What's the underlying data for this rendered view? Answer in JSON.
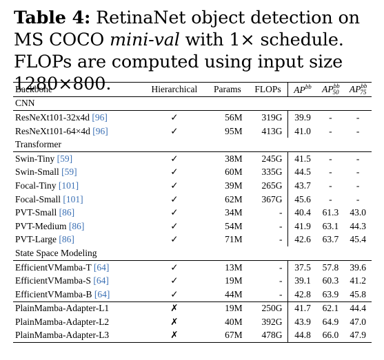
{
  "caption": {
    "label": "Table 4:",
    "text_a": " RetinaNet object detection on MS COCO ",
    "text_it": "mini-val",
    "text_b": " with 1× schedule. FLOPs are computed using input size 1280×800."
  },
  "table": {
    "headers": {
      "backbone": "Backbone",
      "hierarchical": "Hierarchical",
      "params": "Params",
      "flops": "FLOPs",
      "ap": "AP",
      "ap_sup": "bb",
      "ap50_sub": "50",
      "ap75_sub": "75"
    },
    "groups": [
      {
        "name": "CNN",
        "rows": [
          {
            "backbone": "ResNeXt101-32x4d ",
            "ref": "[96]",
            "hier": "✓",
            "params": "56M",
            "flops": "319G",
            "ap": "39.9",
            "ap50": "-",
            "ap75": "-"
          },
          {
            "backbone": "ResNeXt101-64×4d ",
            "ref": "[96]",
            "hier": "✓",
            "params": "95M",
            "flops": "413G",
            "ap": "41.0",
            "ap50": "-",
            "ap75": "-"
          }
        ]
      },
      {
        "name": "Transformer",
        "rows": [
          {
            "backbone": "Swin-Tiny ",
            "ref": "[59]",
            "hier": "✓",
            "params": "38M",
            "flops": "245G",
            "ap": "41.5",
            "ap50": "-",
            "ap75": "-"
          },
          {
            "backbone": "Swin-Small ",
            "ref": "[59]",
            "hier": "✓",
            "params": "60M",
            "flops": "335G",
            "ap": "44.5",
            "ap50": "-",
            "ap75": "-"
          },
          {
            "backbone": "Focal-Tiny ",
            "ref": "[101]",
            "hier": "✓",
            "params": "39M",
            "flops": "265G",
            "ap": "43.7",
            "ap50": "-",
            "ap75": "-"
          },
          {
            "backbone": "Focal-Small ",
            "ref": "[101]",
            "hier": "✓",
            "params": "62M",
            "flops": "367G",
            "ap": "45.6",
            "ap50": "-",
            "ap75": "-"
          },
          {
            "backbone": "PVT-Small ",
            "ref": "[86]",
            "hier": "✓",
            "params": "34M",
            "flops": "-",
            "ap": "40.4",
            "ap50": "61.3",
            "ap75": "43.0"
          },
          {
            "backbone": "PVT-Medium ",
            "ref": "[86]",
            "hier": "✓",
            "params": "54M",
            "flops": "-",
            "ap": "41.9",
            "ap50": "63.1",
            "ap75": "44.3"
          },
          {
            "backbone": "PVT-Large ",
            "ref": "[86]",
            "hier": "✓",
            "params": "71M",
            "flops": "-",
            "ap": "42.6",
            "ap50": "63.7",
            "ap75": "45.4"
          }
        ]
      },
      {
        "name": "State Space Modeling",
        "rows": [
          {
            "backbone": "EfficientVMamba-T ",
            "ref": "[64]",
            "hier": "✓",
            "params": "13M",
            "flops": "-",
            "ap": "37.5",
            "ap50": "57.8",
            "ap75": "39.6"
          },
          {
            "backbone": "EfficientVMamba-S ",
            "ref": "[64]",
            "hier": "✓",
            "params": "19M",
            "flops": "-",
            "ap": "39.1",
            "ap50": "60.3",
            "ap75": "41.2"
          },
          {
            "backbone": "EfficientVMamba-B ",
            "ref": "[64]",
            "hier": "✓",
            "params": "44M",
            "flops": "-",
            "ap": "42.8",
            "ap50": "63.9",
            "ap75": "45.8"
          },
          {
            "backbone": "PlainMamba-Adapter-L1",
            "ref": "",
            "hier": "✗",
            "params": "19M",
            "flops": "250G",
            "ap": "41.7",
            "ap50": "62.1",
            "ap75": "44.4"
          },
          {
            "backbone": "PlainMamba-Adapter-L2",
            "ref": "",
            "hier": "✗",
            "params": "40M",
            "flops": "392G",
            "ap": "43.9",
            "ap50": "64.9",
            "ap75": "47.0"
          },
          {
            "backbone": "PlainMamba-Adapter-L3",
            "ref": "",
            "hier": "✗",
            "params": "67M",
            "flops": "478G",
            "ap": "44.8",
            "ap50": "66.0",
            "ap75": "47.9"
          }
        ]
      }
    ]
  }
}
